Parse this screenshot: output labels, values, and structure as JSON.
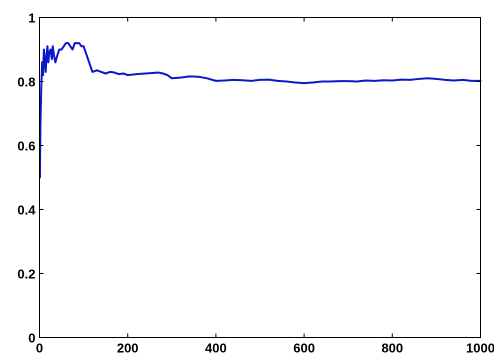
{
  "chart_data": {
    "type": "line",
    "title": "",
    "xlabel": "",
    "ylabel": "",
    "xlim": [
      0,
      1000
    ],
    "ylim": [
      0,
      1
    ],
    "grid": false,
    "x_ticks": [
      0,
      200,
      400,
      600,
      800,
      1000
    ],
    "x_tick_labels": [
      "0",
      "200",
      "400",
      "600",
      "800",
      "1000"
    ],
    "y_ticks": [
      0,
      0.2,
      0.4,
      0.6,
      0.8,
      1
    ],
    "y_tick_labels": [
      "0",
      "0.2",
      "0.4",
      "0.6",
      "0.8",
      "1"
    ],
    "series": [
      {
        "color": "#0b17c8",
        "x": [
          1,
          2,
          4,
          6,
          8,
          10,
          12,
          14,
          16,
          18,
          20,
          22,
          25,
          28,
          30,
          33,
          36,
          40,
          45,
          50,
          55,
          60,
          65,
          70,
          75,
          80,
          85,
          90,
          95,
          100,
          105,
          110,
          115,
          120,
          130,
          140,
          150,
          160,
          170,
          180,
          190,
          200,
          220,
          240,
          260,
          270,
          280,
          290,
          300,
          320,
          340,
          360,
          380,
          400,
          420,
          440,
          460,
          480,
          500,
          520,
          540,
          560,
          580,
          600,
          620,
          640,
          660,
          680,
          700,
          720,
          740,
          760,
          780,
          800,
          820,
          840,
          860,
          880,
          900,
          920,
          940,
          960,
          980,
          1000
        ],
        "y": [
          0.5,
          0.66,
          0.78,
          0.86,
          0.82,
          0.9,
          0.87,
          0.83,
          0.88,
          0.91,
          0.86,
          0.89,
          0.9,
          0.87,
          0.91,
          0.88,
          0.86,
          0.88,
          0.9,
          0.9,
          0.91,
          0.92,
          0.92,
          0.91,
          0.9,
          0.92,
          0.92,
          0.92,
          0.91,
          0.91,
          0.89,
          0.87,
          0.85,
          0.83,
          0.835,
          0.83,
          0.825,
          0.83,
          0.828,
          0.823,
          0.825,
          0.82,
          0.823,
          0.825,
          0.827,
          0.828,
          0.825,
          0.82,
          0.81,
          0.812,
          0.816,
          0.815,
          0.81,
          0.802,
          0.803,
          0.805,
          0.804,
          0.802,
          0.805,
          0.806,
          0.802,
          0.8,
          0.797,
          0.795,
          0.797,
          0.8,
          0.8,
          0.801,
          0.801,
          0.8,
          0.803,
          0.802,
          0.804,
          0.803,
          0.806,
          0.805,
          0.808,
          0.81,
          0.808,
          0.805,
          0.803,
          0.805,
          0.802,
          0.802
        ]
      }
    ]
  }
}
